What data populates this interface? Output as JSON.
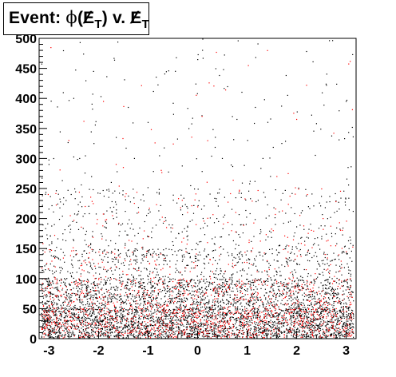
{
  "chart_data": {
    "type": "scatter",
    "title": "Event: ϕ(E̸T) v. E̸T",
    "title_parts": {
      "prefix": "Event: ",
      "phi": "ϕ",
      "open": "(",
      "e": "E",
      "t": "T",
      "close": ") v. "
    },
    "xlabel": "",
    "ylabel": "",
    "xlim": [
      -3.2,
      3.2
    ],
    "ylim": [
      0,
      500
    ],
    "x_ticks": [
      -3,
      -2,
      -1,
      0,
      1,
      2,
      3
    ],
    "y_ticks": [
      0,
      50,
      100,
      150,
      200,
      250,
      300,
      350,
      400,
      450,
      500
    ],
    "grid": false,
    "legend": "none",
    "series": [
      {
        "marker_color": "#000000",
        "density_by_y": [
          {
            "y_range": [
              0,
              50
            ],
            "relative_density": 1.0
          },
          {
            "y_range": [
              50,
              100
            ],
            "relative_density": 0.55
          },
          {
            "y_range": [
              100,
              150
            ],
            "relative_density": 0.2
          },
          {
            "y_range": [
              150,
              250
            ],
            "relative_density": 0.07
          },
          {
            "y_range": [
              250,
              500
            ],
            "relative_density": 0.01
          }
        ],
        "points": [
          [
            -2.1,
            445
          ],
          [
            -1.4,
            385
          ],
          [
            -1.0,
            360
          ],
          [
            0.1,
            480
          ],
          [
            1.7,
            325
          ],
          [
            2.2,
            478
          ],
          [
            2.4,
            358
          ],
          [
            3.0,
            395
          ],
          [
            -3.0,
            290
          ],
          [
            0.5,
            300
          ]
        ]
      },
      {
        "marker_color": "#ff0000",
        "density_by_y": [
          {
            "y_range": [
              0,
              50
            ],
            "relative_density": 1.0
          },
          {
            "y_range": [
              50,
              100
            ],
            "relative_density": 0.45
          },
          {
            "y_range": [
              100,
              150
            ],
            "relative_density": 0.14
          },
          {
            "y_range": [
              150,
              250
            ],
            "relative_density": 0.05
          },
          {
            "y_range": [
              250,
              500
            ],
            "relative_density": 0.008
          }
        ],
        "points": [
          [
            -1.9,
            395
          ],
          [
            0.2,
            160
          ],
          [
            2.2,
            422
          ],
          [
            2.0,
            365
          ],
          [
            2.75,
            342
          ],
          [
            -2.6,
            330
          ],
          [
            1.6,
            270
          ],
          [
            -1.5,
            285
          ]
        ]
      }
    ]
  }
}
